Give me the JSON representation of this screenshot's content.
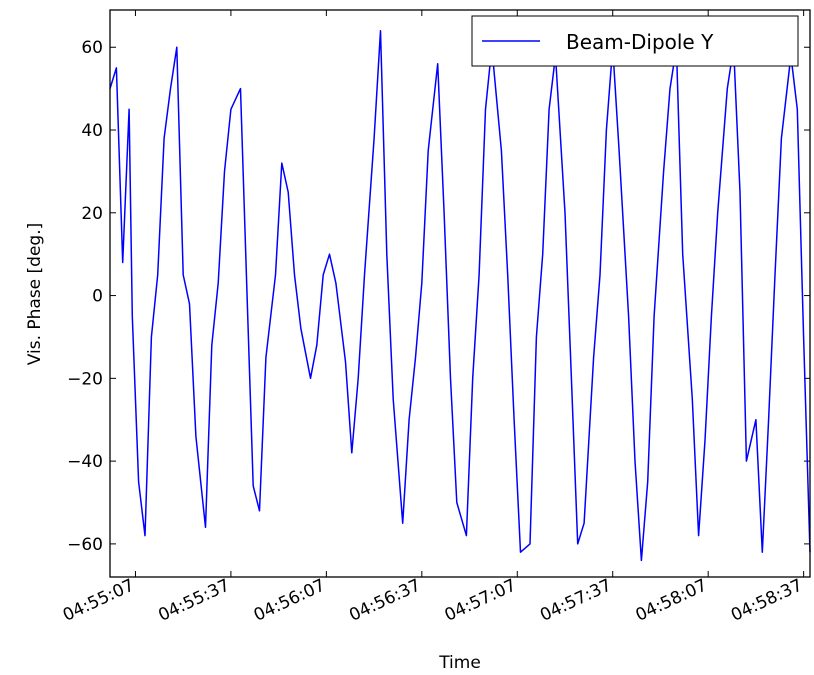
{
  "chart_data": {
    "type": "line",
    "xlabel": "Time",
    "ylabel": "Vis. Phase [deg.]",
    "ylim": [
      -68,
      69
    ],
    "xlim": [
      "04:54:59",
      "04:58:39"
    ],
    "yticks": [
      -60,
      -40,
      -20,
      0,
      20,
      40,
      60
    ],
    "xticks": [
      "04:55:07",
      "04:55:37",
      "04:56:07",
      "04:56:37",
      "04:57:07",
      "04:57:37",
      "04:58:07",
      "04:58:37"
    ],
    "legend": {
      "position": "top-right",
      "entries": [
        "Beam-Dipole Y"
      ]
    },
    "grid": false,
    "series": [
      {
        "name": "Beam-Dipole Y",
        "color": "#0000ff",
        "x": [
          "04:54:59",
          "04:55:01",
          "04:55:03",
          "04:55:05",
          "04:55:06",
          "04:55:08",
          "04:55:10",
          "04:55:12",
          "04:55:14",
          "04:55:16",
          "04:55:18",
          "04:55:20",
          "04:55:22",
          "04:55:24",
          "04:55:26",
          "04:55:29",
          "04:55:31",
          "04:55:33",
          "04:55:35",
          "04:55:37",
          "04:55:40",
          "04:55:42",
          "04:55:44",
          "04:55:46",
          "04:55:48",
          "04:55:51",
          "04:55:53",
          "04:55:55",
          "04:55:57",
          "04:55:59",
          "04:56:02",
          "04:56:04",
          "04:56:06",
          "04:56:08",
          "04:56:10",
          "04:56:13",
          "04:56:15",
          "04:56:17",
          "04:56:19",
          "04:56:22",
          "04:56:24",
          "04:56:26",
          "04:56:28",
          "04:56:31",
          "04:56:33",
          "04:56:35",
          "04:56:37",
          "04:56:39",
          "04:56:42",
          "04:56:44",
          "04:56:46",
          "04:56:48",
          "04:56:51",
          "04:56:53",
          "04:56:55",
          "04:56:57",
          "04:56:59",
          "04:57:02",
          "04:57:04",
          "04:57:06",
          "04:57:08",
          "04:57:11",
          "04:57:13",
          "04:57:15",
          "04:57:17",
          "04:57:19",
          "04:57:22",
          "04:57:24",
          "04:57:26",
          "04:57:28",
          "04:57:31",
          "04:57:33",
          "04:57:35",
          "04:57:37",
          "04:57:39",
          "04:57:42",
          "04:57:44",
          "04:57:46",
          "04:57:48",
          "04:57:50",
          "04:57:53",
          "04:57:55",
          "04:57:57",
          "04:57:59",
          "04:58:02",
          "04:58:04",
          "04:58:06",
          "04:58:08",
          "04:58:10",
          "04:58:13",
          "04:58:15",
          "04:58:17",
          "04:58:19",
          "04:58:22",
          "04:58:24",
          "04:58:26",
          "04:58:28",
          "04:58:30",
          "04:58:33",
          "04:58:35",
          "04:58:37",
          "04:58:39"
        ],
        "values": [
          50,
          55,
          8,
          45,
          -5,
          -45,
          -58,
          -10,
          5,
          38,
          50,
          60,
          5,
          -2,
          -34,
          -56,
          -12,
          3,
          30,
          45,
          50,
          2,
          -46,
          -52,
          -15,
          5,
          32,
          25,
          5,
          -8,
          -20,
          -12,
          5,
          10,
          3,
          -16,
          -38,
          -20,
          5,
          38,
          64,
          10,
          -25,
          -55,
          -30,
          -15,
          3,
          35,
          56,
          20,
          -20,
          -50,
          -58,
          -20,
          5,
          45,
          60,
          35,
          5,
          -30,
          -62,
          -60,
          -10,
          10,
          45,
          58,
          20,
          -20,
          -60,
          -55,
          -15,
          5,
          40,
          60,
          35,
          -5,
          -40,
          -64,
          -45,
          -5,
          30,
          50,
          60,
          10,
          -25,
          -58,
          -35,
          -5,
          20,
          50,
          60,
          25,
          -40,
          -30,
          -62,
          -30,
          5,
          38,
          58,
          45,
          -10,
          -62
        ]
      }
    ]
  }
}
